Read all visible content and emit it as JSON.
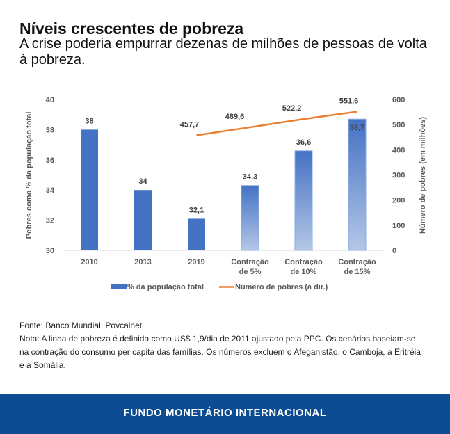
{
  "header": {
    "title": "Níveis crescentes de pobreza",
    "subtitle": "A crise poderia empurrar dezenas de milhões de pessoas de volta à pobreza."
  },
  "chart_data": {
    "type": "bar+line",
    "categories": [
      [
        "2010"
      ],
      [
        "2013"
      ],
      [
        "2019"
      ],
      [
        "Contração",
        "de 5%"
      ],
      [
        "Contração",
        "de 10%"
      ],
      [
        "Contração",
        "de 15%"
      ]
    ],
    "series": [
      {
        "name": "% da população total",
        "type": "bar",
        "axis": "left",
        "values": [
          38,
          34,
          32.1,
          34.3,
          36.6,
          38.7
        ],
        "labels": [
          "38",
          "34",
          "32,1",
          "34,3",
          "36,6",
          "38,7"
        ],
        "color": "#4472c4"
      },
      {
        "name": "Número de pobres (à dir.)",
        "type": "line",
        "axis": "right",
        "values": [
          null,
          null,
          457.7,
          489.6,
          522.2,
          551.6
        ],
        "labels": [
          "",
          "",
          "457,7",
          "489,6",
          "522,2",
          "551,6"
        ],
        "color": "#ed7d31"
      }
    ],
    "ylabel": "Pobres como % da população total",
    "y2label": "Número de pobres (em milhões)",
    "ylim": [
      30,
      40
    ],
    "yticks": [
      "30",
      "32",
      "34",
      "36",
      "38",
      "40"
    ],
    "y2lim": [
      0,
      600
    ],
    "y2ticks": [
      "0",
      "100",
      "200",
      "300",
      "400",
      "500",
      "600"
    ],
    "legend": "bottom"
  },
  "notes": {
    "source": "Fonte: Banco Mundial, Povcalnet.",
    "note": "Nota: A linha de pobreza é definida como US$ 1,9/dia de 2011 ajustado pela PPC. Os cenários baseiam-se na contração do consumo per capita das famílias. Os números excluem o Afeganistão, o Camboja, a Eritréia e a Somália."
  },
  "footer": {
    "label": "FUNDO MONETÁRIO INTERNACIONAL"
  }
}
